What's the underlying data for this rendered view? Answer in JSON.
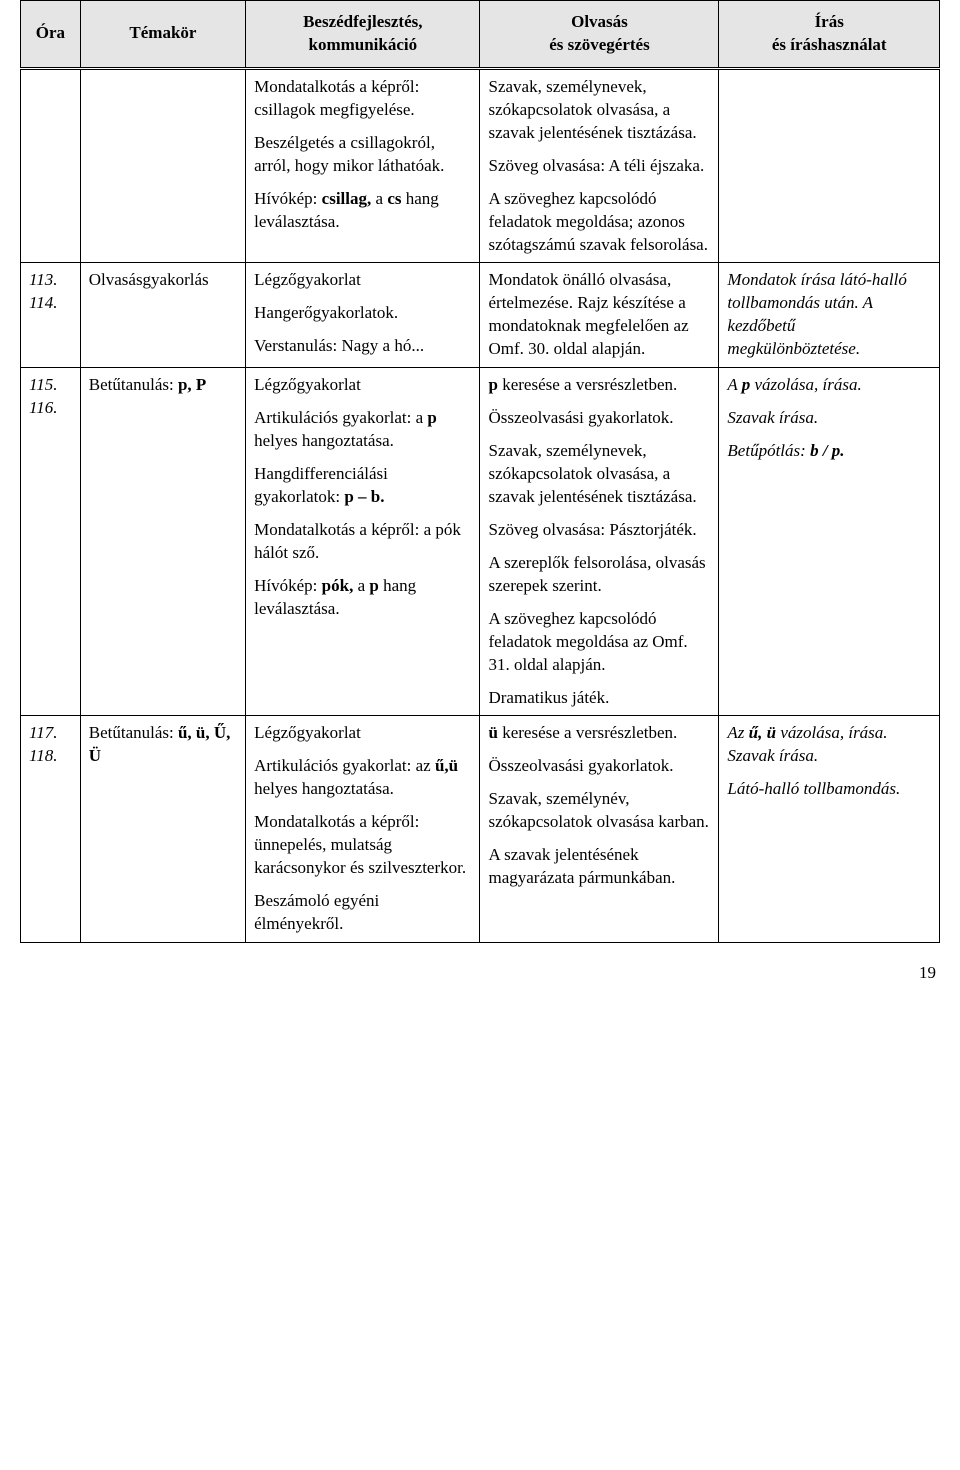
{
  "header": {
    "ora": "Óra",
    "temakor": "Témakör",
    "beszed_l1": "Beszédfejlesztés,",
    "beszed_l2": "kommunikáció",
    "olvasas_l1": "Olvasás",
    "olvasas_l2": "és szövegértés",
    "iras_l1": "Írás",
    "iras_l2": "és íráshasználat"
  },
  "rows": [
    {
      "ora": "",
      "tema": "",
      "beszed": {
        "p1": "Mondatalkotás a képről: csillagok megfigyelése.",
        "p2": "Beszélgetés a csillagokról, arról, hogy mikor láthatóak.",
        "p3_pre": "Hívókép: ",
        "p3_bold": "csillag,",
        "p3_mid": " a ",
        "p3_bold2": "cs",
        "p3_post": " hang leválasztása."
      },
      "olv": {
        "p1": "Szavak, személynevek, szókapcsolatok olvasása, a szavak jelentésének tisztázása.",
        "p2": "Szöveg olvasása: A téli éjszaka.",
        "p3": "A szöveghez kapcsolódó feladatok megoldása; azonos szótagszámú szavak felsorolása."
      },
      "iras": ""
    },
    {
      "ora": "113. 114.",
      "tema": "Olvasásgyakorlás",
      "beszed": {
        "p1": "Légzőgyakorlat",
        "p2": "Hangerőgyakorlatok.",
        "p3": "Verstanulás: Nagy a hó..."
      },
      "olv": {
        "p1": "Mondatok önálló olvasása, értelmezése. Rajz készítése a mondatoknak megfelelően az Omf. 30. oldal alapján."
      },
      "iras": {
        "p1": "Mondatok írása látó-halló tollbamondás után. A kezdőbetű megkülönböztetése."
      }
    },
    {
      "ora": "115. 116.",
      "tema_pre": "Betűtanulás: ",
      "tema_bold": "p, P",
      "beszed": {
        "p1": "Légzőgyakorlat",
        "p2_pre": "Artikulációs gyakorlat: a ",
        "p2_bold": "p",
        "p2_post": " helyes hangoztatása.",
        "p3_pre": "Hangdifferenciálási gyakorlatok: ",
        "p3_bold": "p – b.",
        "p4": "Mondatalkotás a képről: a pók hálót sző.",
        "p5_pre": "Hívókép: ",
        "p5_bold": "pók,",
        "p5_mid": " a ",
        "p5_bold2": "p",
        "p5_post": " hang leválasztása."
      },
      "olv": {
        "p1_bold": "p",
        "p1_post": " keresése a versrészletben.",
        "p2": "Összeolvasási gyakorlatok.",
        "p3": "Szavak, személynevek, szókapcsolatok olvasása, a szavak jelentésének tisztázása.",
        "p4": "Szöveg olvasása: Pásztorjáték.",
        "p5": "A szereplők felsorolása, olvasás szerepek szerint.",
        "p6": "A szöveghez kapcsolódó feladatok megoldása az Omf. 31. oldal alapján.",
        "p7": "Dramatikus játék."
      },
      "iras": {
        "p1_pre": "A ",
        "p1_bi": "p",
        "p1_post": " vázolása, írása.",
        "p2": "Szavak írása.",
        "p3_pre": "Betűpótlás: ",
        "p3_bi": "b / p."
      }
    },
    {
      "ora": "117. 118.",
      "tema_pre": "Betűtanulás: ",
      "tema_bold": "ű, ü, Ű, Ü",
      "beszed": {
        "p1": "Légzőgyakorlat",
        "p2_pre": "Artikulációs gyakorlat: az ",
        "p2_bold": "ű,ü",
        "p2_post": " helyes hangoztatása.",
        "p3": "Mondatalkotás a képről: ünnepelés, mulatság karácsonykor és szilveszterkor.",
        "p4": "Beszámoló egyéni élményekről."
      },
      "olv": {
        "p1_bold": "ü",
        "p1_post": " keresése a versrészletben.",
        "p2": "Összeolvasási gyakorlatok.",
        "p3": "Szavak, személynév, szókapcsolatok olvasása karban.",
        "p4": "A szavak jelentésének magyarázata pármunkában."
      },
      "iras": {
        "p1_pre": "Az ",
        "p1_bi": "ű, ü",
        "p1_post": " vázolása, írása. Szavak írása.",
        "p2": "Látó-halló tollbamondás."
      }
    }
  ],
  "pageNumber": "19"
}
